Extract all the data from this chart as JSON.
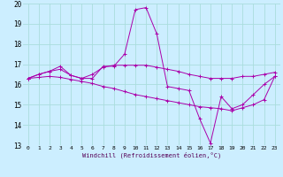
{
  "xlabel": "Windchill (Refroidissement éolien,°C)",
  "background_color": "#cceeff",
  "grid_color": "#aadddd",
  "line_color": "#aa00aa",
  "xlim": [
    -0.5,
    23.5
  ],
  "ylim": [
    13,
    20
  ],
  "xticks": [
    0,
    1,
    2,
    3,
    4,
    5,
    6,
    7,
    8,
    9,
    10,
    11,
    12,
    13,
    14,
    15,
    16,
    17,
    18,
    19,
    20,
    21,
    22,
    23
  ],
  "yticks": [
    13,
    14,
    15,
    16,
    17,
    18,
    19,
    20
  ],
  "series1_x": [
    0,
    1,
    2,
    3,
    4,
    5,
    6,
    7,
    8,
    9,
    10,
    11,
    12,
    13,
    14,
    15,
    16,
    17,
    18,
    19,
    20,
    21,
    22,
    23
  ],
  "series1_y": [
    16.3,
    16.5,
    16.65,
    16.9,
    16.45,
    16.3,
    16.3,
    16.9,
    16.9,
    17.5,
    19.7,
    19.8,
    18.5,
    15.9,
    15.8,
    15.7,
    14.3,
    13.1,
    15.4,
    14.8,
    15.0,
    15.5,
    16.0,
    16.4
  ],
  "series2_x": [
    0,
    1,
    2,
    3,
    4,
    5,
    6,
    7,
    8,
    9,
    10,
    11,
    12,
    13,
    14,
    15,
    16,
    17,
    18,
    19,
    20,
    21,
    22,
    23
  ],
  "series2_y": [
    16.3,
    16.5,
    16.65,
    16.75,
    16.45,
    16.3,
    16.5,
    16.85,
    16.95,
    16.95,
    16.95,
    16.95,
    16.85,
    16.75,
    16.65,
    16.5,
    16.4,
    16.3,
    16.3,
    16.3,
    16.4,
    16.4,
    16.5,
    16.6
  ],
  "series3_x": [
    0,
    1,
    2,
    3,
    4,
    5,
    6,
    7,
    8,
    9,
    10,
    11,
    12,
    13,
    14,
    15,
    16,
    17,
    18,
    19,
    20,
    21,
    22,
    23
  ],
  "series3_y": [
    16.3,
    16.35,
    16.4,
    16.35,
    16.25,
    16.15,
    16.05,
    15.9,
    15.8,
    15.65,
    15.5,
    15.4,
    15.3,
    15.2,
    15.1,
    15.0,
    14.9,
    14.85,
    14.8,
    14.7,
    14.85,
    15.0,
    15.25,
    16.4
  ]
}
